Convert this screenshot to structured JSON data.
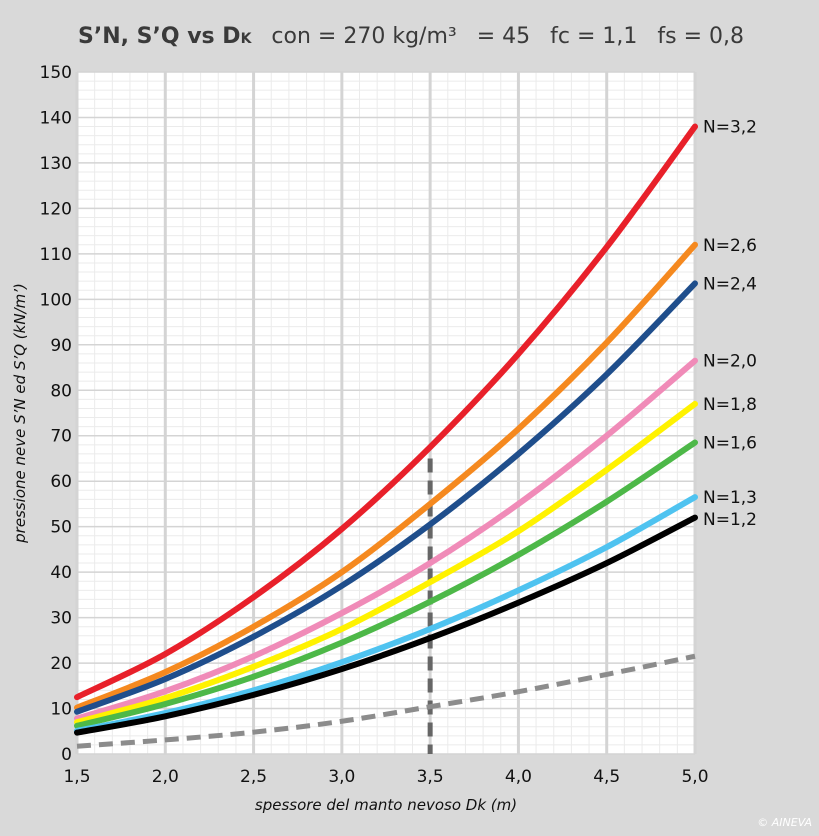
{
  "title": {
    "part1": "S’N, S’Q vs D",
    "part1_sub": "K",
    "part2": "con = 270 kg/m³",
    "part3": "= 45",
    "part4": "fc = 1,1",
    "part5": "fs = 0,8"
  },
  "credit": "© AINEVA",
  "colors": {
    "background": "#d9d9d9",
    "plot_bg": "#ffffff",
    "minor_grid": "#ebebeb",
    "major_grid": "#d4d4d4"
  },
  "chart_data": {
    "type": "line",
    "xlabel": "spessore del manto nevoso Dk (m)",
    "ylabel": "pressione neve S’N ed S’Q (kN/m’)",
    "xlim": [
      1.5,
      5.0
    ],
    "ylim": [
      0,
      150
    ],
    "x_ticks": [
      "1,5",
      "2,0",
      "2,5",
      "3,0",
      "3,5",
      "4,0",
      "4,5",
      "5,0"
    ],
    "y_ticks": [
      "0",
      "10",
      "20",
      "30",
      "40",
      "50",
      "60",
      "70",
      "80",
      "90",
      "100",
      "110",
      "120",
      "130",
      "140",
      "150"
    ],
    "grid": true,
    "x": [
      1.5,
      2.0,
      2.5,
      3.0,
      3.5,
      4.0,
      4.5,
      5.0
    ],
    "series": [
      {
        "name": "N=3,2",
        "color": "#e8202a",
        "values": [
          12.5,
          22,
          34.5,
          49.5,
          67.5,
          88,
          111.5,
          138
        ]
      },
      {
        "name": "N=2,6",
        "color": "#f5891f",
        "values": [
          10.2,
          18,
          28,
          40,
          55,
          71.5,
          90.5,
          112
        ]
      },
      {
        "name": "N=2,4",
        "color": "#1f4e8c",
        "values": [
          9.3,
          16.5,
          25.8,
          37,
          50.5,
          66,
          83.5,
          103.5
        ]
      },
      {
        "name": "N=2,0",
        "color": "#f08bb8",
        "values": [
          7.8,
          13.8,
          21.5,
          31,
          42,
          55,
          70,
          86.5
        ]
      },
      {
        "name": "N=1,8",
        "color": "#fff200",
        "values": [
          7,
          12.3,
          19.2,
          27.5,
          37.8,
          49,
          62.5,
          77
        ]
      },
      {
        "name": "N=1,6",
        "color": "#4db848",
        "values": [
          6.2,
          11,
          17,
          24.5,
          33.5,
          43.8,
          55.5,
          68.5
        ]
      },
      {
        "name": "N=1,3",
        "color": "#4fc3f0",
        "values": [
          5.1,
          9,
          14,
          20.2,
          27.5,
          36,
          45.5,
          56.5
        ]
      },
      {
        "name": "N=1,2",
        "color": "#000000",
        "values": [
          4.7,
          8.3,
          13,
          18.7,
          25.5,
          33.3,
          42,
          52
        ]
      },
      {
        "name": "",
        "color": "#8c8c8c",
        "dashed": true,
        "values": [
          1.7,
          3.1,
          4.8,
          7.2,
          10.4,
          13.7,
          17.5,
          21.5
        ]
      }
    ],
    "vertical_marker": {
      "x": 3.5,
      "y_top": 65,
      "color": "#666666"
    }
  }
}
